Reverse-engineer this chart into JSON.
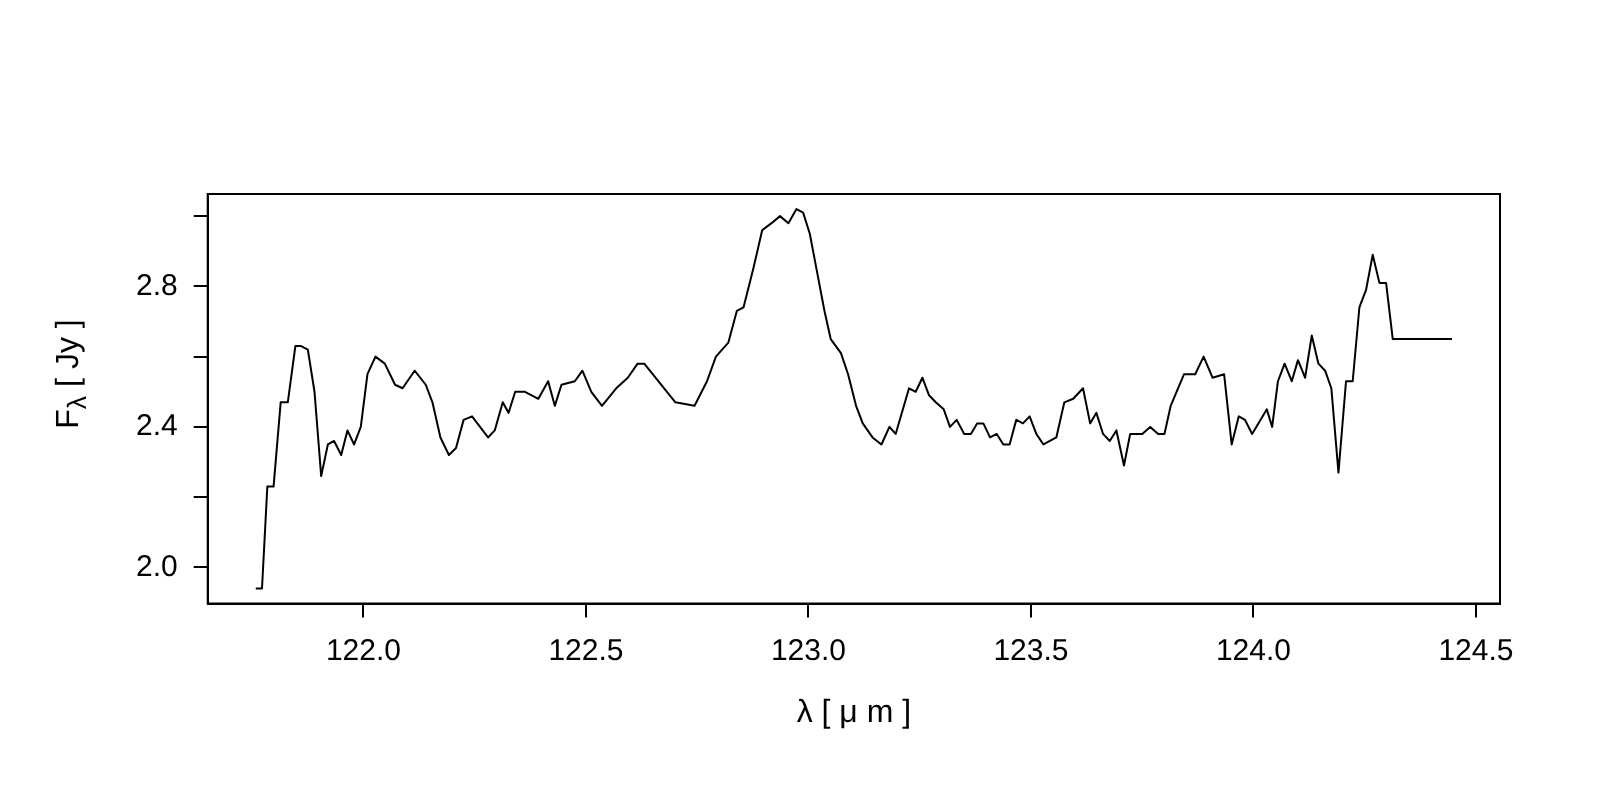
{
  "chart_data": {
    "type": "line",
    "xlabel": "λ [ μ m ]",
    "ylabel": "F$_{λ}$ [ Jy ]",
    "xlim": [
      121.65,
      124.554
    ],
    "ylim": [
      1.897,
      3.063
    ],
    "xticks": [
      {
        "value": 122,
        "label": "122.0"
      },
      122.5,
      {
        "value": 123,
        "label": "123.0"
      },
      123.5,
      {
        "value": 124,
        "label": "124.0"
      },
      124.5
    ],
    "yticks": [
      {
        "value": 2,
        "label": "2.0"
      },
      {
        "value": 2.2,
        "label": null
      },
      2.4,
      {
        "value": 2.6,
        "label": null
      },
      2.8,
      {
        "value": 3,
        "label": null
      }
    ],
    "grid": false,
    "legend": false,
    "marker": "none",
    "line_style": "solid",
    "series": [
      {
        "color": "#000000",
        "x": [
          121.758,
          121.772,
          121.784,
          121.798,
          121.814,
          121.83,
          121.847,
          121.86,
          121.875,
          121.89,
          121.905,
          121.92,
          121.934,
          121.95,
          121.964,
          121.979,
          121.994,
          122.009,
          122.027,
          122.048,
          122.071,
          122.088,
          122.115,
          122.14,
          122.155,
          122.173,
          122.192,
          122.208,
          122.225,
          122.244,
          122.262,
          122.28,
          122.295,
          122.313,
          122.326,
          122.341,
          122.363,
          122.378,
          122.393,
          122.415,
          122.43,
          122.445,
          122.475,
          122.492,
          122.512,
          122.536,
          122.568,
          122.594,
          122.616,
          122.631,
          122.701,
          122.744,
          122.772,
          122.792,
          122.82,
          122.839,
          122.854,
          122.876,
          122.896,
          122.917,
          122.936,
          122.955,
          122.973,
          122.988,
          123.003,
          123.018,
          123.036,
          123.05,
          123.073,
          123.089,
          123.107,
          123.122,
          123.144,
          123.164,
          123.182,
          123.196,
          123.226,
          123.241,
          123.256,
          123.271,
          123.286,
          123.304,
          123.318,
          123.333,
          123.35,
          123.365,
          123.379,
          123.393,
          123.408,
          123.423,
          123.438,
          123.452,
          123.467,
          123.482,
          123.497,
          123.512,
          123.528,
          123.557,
          123.575,
          123.595,
          123.617,
          123.633,
          123.647,
          123.662,
          123.677,
          123.692,
          123.709,
          123.723,
          123.75,
          123.768,
          123.786,
          123.8,
          123.814,
          123.844,
          123.869,
          123.888,
          123.908,
          123.934,
          123.951,
          123.967,
          123.981,
          123.997,
          124.03,
          124.042,
          124.055,
          124.07,
          124.086,
          124.1,
          124.116,
          124.131,
          124.146,
          124.161,
          124.175,
          124.191,
          124.208,
          124.223,
          124.238,
          124.253,
          124.268,
          124.283,
          124.298,
          124.313,
          124.446
        ],
        "values": [
          1.94,
          1.94,
          2.23,
          2.23,
          2.47,
          2.47,
          2.63,
          2.63,
          2.62,
          2.5,
          2.26,
          2.35,
          2.36,
          2.32,
          2.39,
          2.35,
          2.4,
          2.55,
          2.6,
          2.58,
          2.52,
          2.51,
          2.56,
          2.52,
          2.47,
          2.37,
          2.32,
          2.34,
          2.42,
          2.43,
          2.4,
          2.37,
          2.39,
          2.47,
          2.44,
          2.5,
          2.5,
          2.49,
          2.48,
          2.53,
          2.46,
          2.52,
          2.53,
          2.56,
          2.5,
          2.46,
          2.51,
          2.54,
          2.58,
          2.58,
          2.47,
          2.46,
          2.53,
          2.6,
          2.64,
          2.73,
          2.74,
          2.85,
          2.96,
          2.98,
          3.0,
          2.98,
          3.02,
          3.01,
          2.95,
          2.85,
          2.73,
          2.65,
          2.61,
          2.55,
          2.46,
          2.41,
          2.37,
          2.35,
          2.4,
          2.38,
          2.51,
          2.5,
          2.54,
          2.49,
          2.47,
          2.45,
          2.4,
          2.42,
          2.38,
          2.38,
          2.41,
          2.41,
          2.37,
          2.38,
          2.35,
          2.35,
          2.42,
          2.41,
          2.43,
          2.38,
          2.35,
          2.37,
          2.47,
          2.48,
          2.51,
          2.41,
          2.44,
          2.38,
          2.36,
          2.39,
          2.29,
          2.38,
          2.38,
          2.4,
          2.38,
          2.38,
          2.46,
          2.55,
          2.55,
          2.6,
          2.54,
          2.55,
          2.35,
          2.43,
          2.42,
          2.38,
          2.45,
          2.4,
          2.53,
          2.58,
          2.53,
          2.59,
          2.54,
          2.66,
          2.58,
          2.56,
          2.51,
          2.27,
          2.53,
          2.53,
          2.74,
          2.79,
          2.89,
          2.81,
          2.81,
          2.65,
          2.65
        ]
      }
    ]
  }
}
